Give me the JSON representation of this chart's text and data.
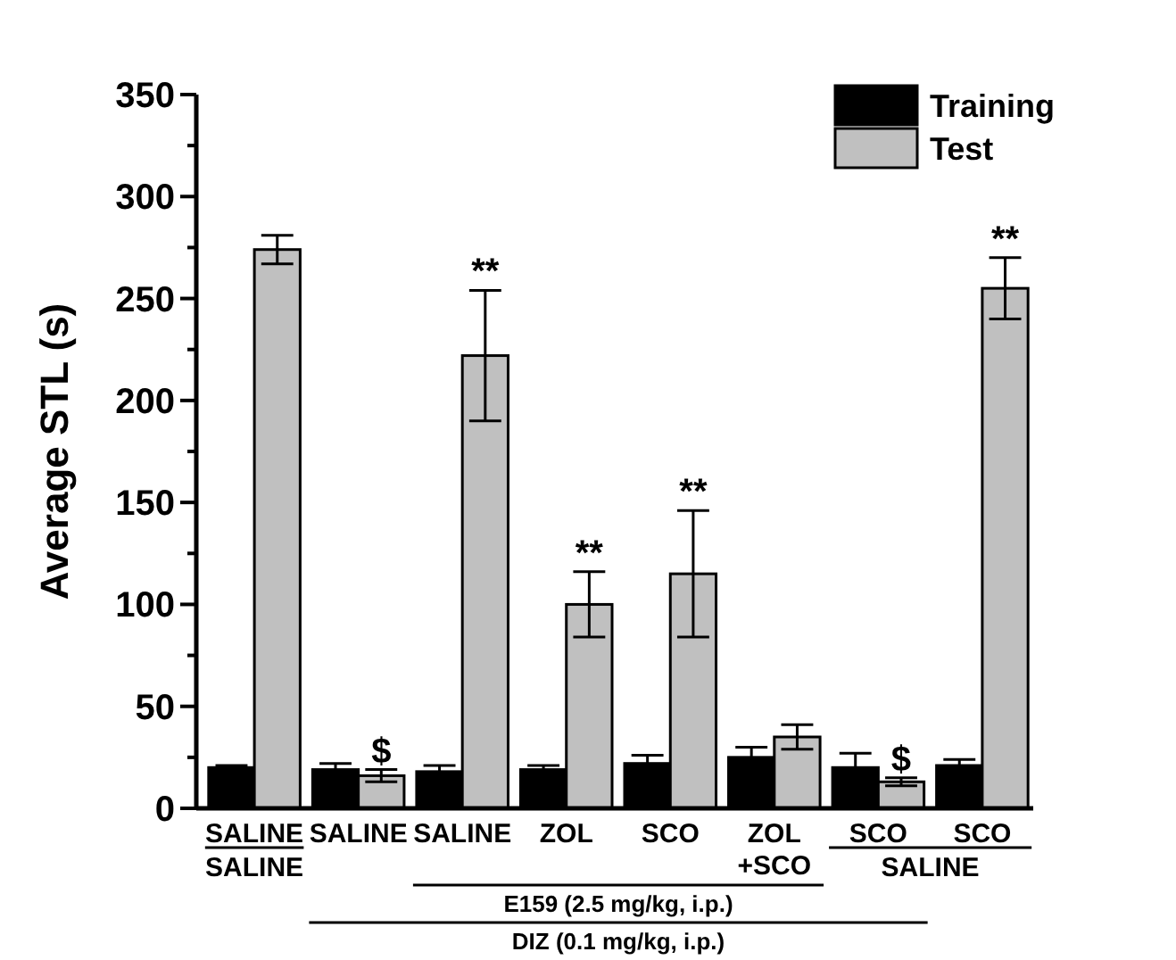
{
  "chart_data": {
    "type": "bar",
    "ylabel": "Average STL (s)",
    "categories": [
      "SALINE",
      "SALINE",
      "SALINE",
      "ZOL",
      "SCO",
      "ZOL +SCO",
      "SCO",
      "SCO"
    ],
    "series": [
      {
        "name": "Training",
        "color": "#000000",
        "values": [
          20,
          19,
          18,
          19,
          22,
          25,
          20,
          21
        ],
        "errors": [
          1,
          3,
          3,
          2,
          4,
          5,
          7,
          3
        ]
      },
      {
        "name": "Test",
        "color": "#c0c0c0",
        "values": [
          274,
          16,
          222,
          100,
          115,
          35,
          13,
          255
        ],
        "errors": [
          7,
          3,
          32,
          16,
          31,
          6,
          2,
          15
        ],
        "value_labels": [
          null,
          "$",
          "**",
          "**",
          "**",
          null,
          "$",
          "**"
        ]
      }
    ],
    "ylim": [
      0,
      350
    ],
    "yticks": [
      0,
      {
        "value": 25,
        "label": null
      },
      50,
      {
        "value": 75,
        "label": null
      },
      100,
      {
        "value": 125,
        "label": null
      },
      150,
      {
        "value": 175,
        "label": null
      },
      200,
      {
        "value": 225,
        "label": null
      },
      250,
      {
        "value": 275,
        "label": null
      },
      300,
      {
        "value": 325,
        "label": null
      },
      350
    ],
    "legend": "top right",
    "grid": false,
    "annotations": [
      "SALINE",
      "SALINE",
      "E159 (2.5 mg/kg, i.p.)",
      "DIZ (0.1 mg/kg, i.p.)"
    ]
  }
}
